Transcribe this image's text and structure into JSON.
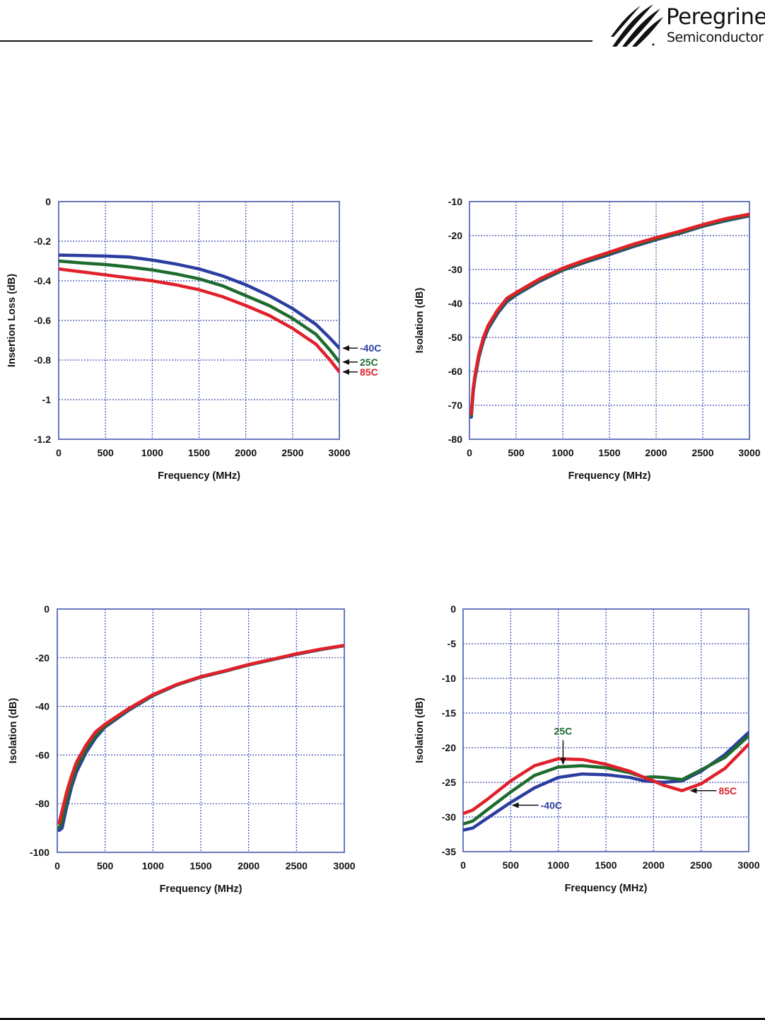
{
  "header": {
    "brand_name": "Peregrine",
    "brand_sub": "Semiconductor",
    "logo_icon": "peregrine-feather-icon"
  },
  "colors": {
    "series_-40C": "#2b3ea0",
    "series_25C": "#1e6b2e",
    "series_85C": "#e0202a",
    "grid": "#3a4bb0",
    "axis": "#5a6bb8"
  },
  "chart_data": [
    {
      "type": "line",
      "title": "",
      "xlabel": "Frequency (MHz)",
      "ylabel": "Insertion Loss (dB)",
      "xlim": [
        0,
        3000
      ],
      "ylim": [
        -1.2,
        0
      ],
      "xticks": [
        0,
        500,
        1000,
        1500,
        2000,
        2500,
        3000
      ],
      "yticks": [
        0,
        -0.2,
        -0.4,
        -0.6,
        -0.8,
        -1,
        -1.2
      ],
      "ytick_labels": [
        "0",
        "-0.2",
        "-0.4",
        "-0.6",
        "-0.8",
        "-1",
        "-1.2"
      ],
      "grid": true,
      "annotations": [
        {
          "text": "-40C",
          "series": "-40C",
          "at_x": 3000,
          "at_y": -0.74,
          "style": "arrow-left"
        },
        {
          "text": "25C",
          "series": "25C",
          "at_x": 3000,
          "at_y": -0.81,
          "style": "arrow-left"
        },
        {
          "text": "85C",
          "series": "85C",
          "at_x": 3000,
          "at_y": -0.86,
          "style": "arrow-left"
        }
      ],
      "x": [
        0,
        250,
        500,
        750,
        1000,
        1250,
        1500,
        1750,
        2000,
        2250,
        2500,
        2750,
        2900,
        3000
      ],
      "series": [
        {
          "name": "-40C",
          "values": [
            -0.27,
            -0.272,
            -0.275,
            -0.28,
            -0.295,
            -0.315,
            -0.34,
            -0.375,
            -0.42,
            -0.475,
            -0.54,
            -0.62,
            -0.69,
            -0.74
          ]
        },
        {
          "name": "25C",
          "values": [
            -0.3,
            -0.31,
            -0.318,
            -0.33,
            -0.345,
            -0.365,
            -0.39,
            -0.425,
            -0.475,
            -0.525,
            -0.59,
            -0.67,
            -0.75,
            -0.81
          ]
        },
        {
          "name": "85C",
          "values": [
            -0.34,
            -0.355,
            -0.37,
            -0.385,
            -0.4,
            -0.42,
            -0.445,
            -0.48,
            -0.525,
            -0.575,
            -0.64,
            -0.72,
            -0.8,
            -0.86
          ]
        }
      ]
    },
    {
      "type": "line",
      "title": "",
      "xlabel": "Frequency (MHz)",
      "ylabel": "Isolation (dB)",
      "xlim": [
        0,
        3000
      ],
      "ylim": [
        -80,
        -10
      ],
      "xticks": [
        0,
        500,
        1000,
        1500,
        2000,
        2500,
        3000
      ],
      "yticks": [
        -10,
        -20,
        -30,
        -40,
        -50,
        -60,
        -70,
        -80
      ],
      "ytick_labels": [
        "-10",
        "-20",
        "-30",
        "-40",
        "-50",
        "-60",
        "-70",
        "-80"
      ],
      "grid": true,
      "annotations": [],
      "x": [
        20,
        40,
        60,
        100,
        150,
        200,
        300,
        400,
        500,
        750,
        1000,
        1250,
        1500,
        1750,
        2000,
        2250,
        2500,
        2750,
        3000
      ],
      "series": [
        {
          "name": "-40C",
          "values": [
            -73.5,
            -66,
            -62,
            -56,
            -51,
            -47.5,
            -43,
            -39.5,
            -37.5,
            -33.5,
            -30.2,
            -27.8,
            -25.6,
            -23.3,
            -21.2,
            -19.4,
            -17.3,
            -15.6,
            -14.2
          ]
        },
        {
          "name": "25C",
          "values": [
            -73,
            -65.5,
            -61.5,
            -55.5,
            -50.5,
            -47,
            -42.5,
            -39,
            -37.2,
            -33.2,
            -30,
            -27.5,
            -25.3,
            -23,
            -21,
            -19.2,
            -17.1,
            -15.4,
            -14
          ]
        },
        {
          "name": "85C",
          "values": [
            -72.5,
            -65,
            -61,
            -55,
            -50,
            -46.5,
            -42,
            -38.5,
            -36.8,
            -32.8,
            -29.6,
            -27.1,
            -24.9,
            -22.6,
            -20.6,
            -18.8,
            -16.8,
            -15,
            -13.7
          ]
        }
      ]
    },
    {
      "type": "line",
      "title": "",
      "xlabel": "Frequency (MHz)",
      "ylabel": "Isolation (dB)",
      "xlim": [
        0,
        3000
      ],
      "ylim": [
        -100,
        0
      ],
      "xticks": [
        0,
        500,
        1000,
        1500,
        2000,
        2500,
        3000
      ],
      "yticks": [
        0,
        -20,
        -40,
        -60,
        -80,
        -100
      ],
      "ytick_labels": [
        "0",
        "-20",
        "-40",
        "-60",
        "-80",
        "-100"
      ],
      "grid": true,
      "annotations": [],
      "x": [
        20,
        50,
        100,
        150,
        200,
        300,
        400,
        500,
        750,
        1000,
        1250,
        1500,
        1750,
        2000,
        2250,
        2500,
        2750,
        3000
      ],
      "series": [
        {
          "name": "-40C",
          "values": [
            -91,
            -90,
            -81,
            -73,
            -67,
            -59,
            -53,
            -48.5,
            -41.5,
            -35.6,
            -31.2,
            -28,
            -25.6,
            -23,
            -20.8,
            -18.6,
            -16.7,
            -15.1
          ]
        },
        {
          "name": "25C",
          "values": [
            -90,
            -87,
            -78,
            -71,
            -65,
            -57.5,
            -52,
            -48,
            -41.2,
            -35.4,
            -31.1,
            -27.9,
            -25.5,
            -22.9,
            -20.7,
            -18.5,
            -16.6,
            -15
          ]
        },
        {
          "name": "85C",
          "values": [
            -88,
            -83,
            -75,
            -68.5,
            -63,
            -56,
            -50.5,
            -47.3,
            -40.8,
            -35.2,
            -31,
            -27.8,
            -25.4,
            -22.8,
            -20.6,
            -18.4,
            -16.5,
            -14.9
          ]
        }
      ]
    },
    {
      "type": "line",
      "title": "",
      "xlabel": "Frequency (MHz)",
      "ylabel": "Isolation (dB)",
      "xlim": [
        0,
        3000
      ],
      "ylim": [
        -35,
        0
      ],
      "xticks": [
        0,
        500,
        1000,
        1500,
        2000,
        2500,
        3000
      ],
      "yticks": [
        0,
        -5,
        -10,
        -15,
        -20,
        -25,
        -30,
        -35
      ],
      "ytick_labels": [
        "0",
        "-5",
        "-10",
        "-15",
        "-20",
        "-25",
        "-30",
        "-35"
      ],
      "grid": true,
      "annotations": [
        {
          "text": "25C",
          "series": "25C",
          "at_x": 1050,
          "at_y": -22.6,
          "style": "arrow-down"
        },
        {
          "text": "-40C",
          "series": "-40C",
          "at_x": 480,
          "at_y": -28.3,
          "style": "arrow-left"
        },
        {
          "text": "85C",
          "series": "85C",
          "at_x": 2350,
          "at_y": -26.2,
          "style": "arrow-left"
        }
      ],
      "x": [
        0,
        100,
        250,
        500,
        750,
        1000,
        1250,
        1500,
        1750,
        1900,
        2000,
        2100,
        2300,
        2500,
        2750,
        3000
      ],
      "series": [
        {
          "name": "-40C",
          "values": [
            -31.9,
            -31.6,
            -30.2,
            -27.9,
            -25.8,
            -24.3,
            -23.8,
            -23.9,
            -24.3,
            -24.8,
            -24.9,
            -25.0,
            -24.8,
            -23.4,
            -21.0,
            -17.8
          ]
        },
        {
          "name": "25C",
          "values": [
            -31.0,
            -30.6,
            -29.0,
            -26.4,
            -24.0,
            -22.8,
            -22.6,
            -22.9,
            -23.6,
            -24.3,
            -24.2,
            -24.3,
            -24.6,
            -23.2,
            -21.4,
            -18.3
          ]
        },
        {
          "name": "85C",
          "values": [
            -29.5,
            -29.0,
            -27.5,
            -24.8,
            -22.6,
            -21.6,
            -21.7,
            -22.4,
            -23.4,
            -24.3,
            -24.8,
            -25.4,
            -26.2,
            -25.2,
            -23.0,
            -19.5
          ]
        }
      ]
    }
  ]
}
